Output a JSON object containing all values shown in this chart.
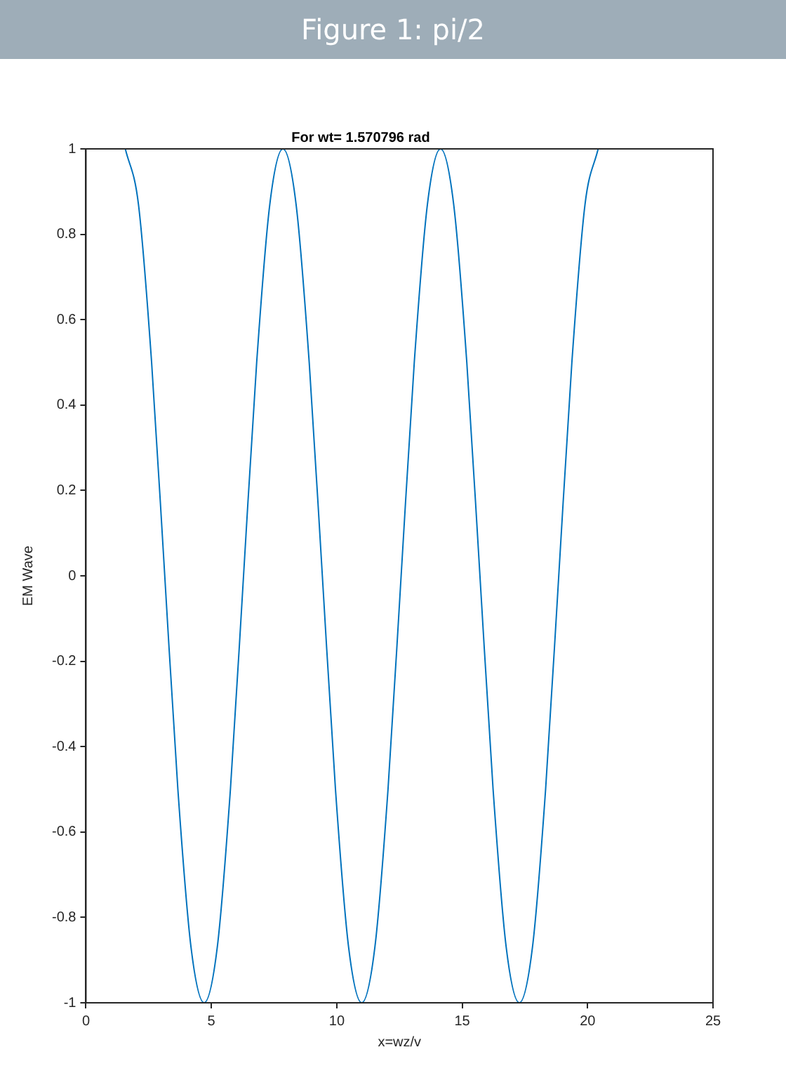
{
  "chart_data": {
    "type": "line",
    "title": "Figure 1: pi/2",
    "subtitle": "For wt= 1.570796 rad",
    "xlabel": "x=wz/v",
    "ylabel": "EM Wave",
    "x": [
      1.571,
      2.094,
      2.618,
      3.142,
      3.665,
      4.189,
      4.712,
      5.236,
      5.76,
      6.283,
      6.807,
      7.33,
      7.854,
      8.378,
      8.901,
      9.425,
      9.948,
      10.472,
      10.996,
      11.519,
      12.043,
      12.566,
      13.09,
      13.614,
      14.137,
      14.661,
      15.184,
      15.708,
      16.232,
      16.755,
      17.279,
      17.802,
      18.326,
      18.85,
      19.373,
      19.897,
      20.42
    ],
    "series": [
      {
        "color": "#0072bd",
        "values": [
          1,
          0.87,
          0.5,
          0,
          -0.5,
          -0.87,
          -1,
          -0.87,
          -0.5,
          0,
          0.5,
          0.87,
          1,
          0.87,
          0.5,
          0,
          -0.5,
          -0.87,
          -1,
          -0.87,
          -0.5,
          0,
          0.5,
          0.87,
          1,
          0.87,
          0.5,
          0,
          -0.5,
          -0.87,
          -1,
          -0.87,
          -0.5,
          0,
          0.5,
          0.87,
          1
        ]
      }
    ],
    "xlim": [
      0,
      25
    ],
    "xticks": [
      0,
      5,
      10,
      15,
      20,
      25
    ],
    "ylim": [
      -1,
      1
    ],
    "yticks": [
      -1,
      -0.8,
      -0.6,
      -0.4,
      -0.2,
      0,
      0.2,
      0.4,
      0.6,
      0.8,
      1
    ],
    "grid": false,
    "legend": false,
    "marker": "none",
    "line_style": "solid"
  }
}
